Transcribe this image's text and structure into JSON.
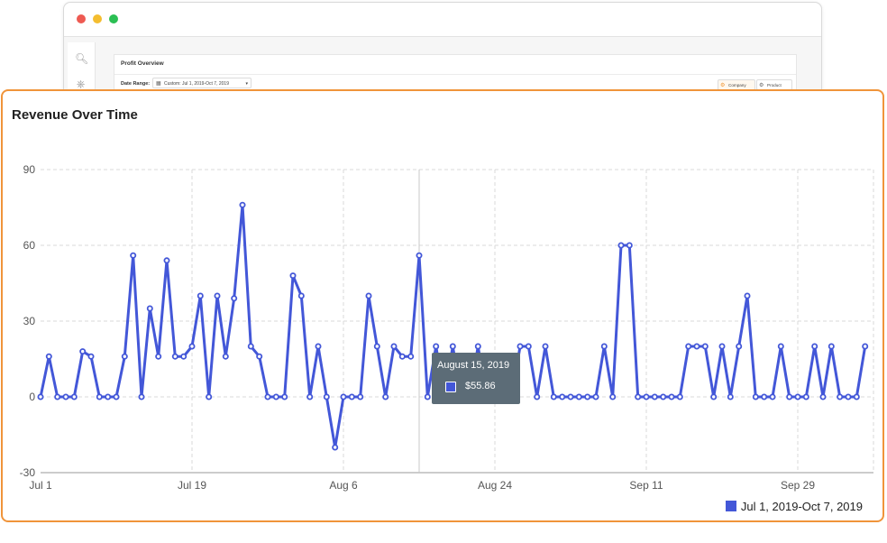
{
  "background_window": {
    "panel_title": "Profit Overview",
    "date_range_label": "Date Range:",
    "date_range_value": "Custom: Jul 1, 2019-Oct 7, 2019",
    "segments": [
      "Company",
      "Product"
    ],
    "sidebar_icons": [
      "search-icon",
      "tag-icon"
    ]
  },
  "card": {
    "title": "Revenue Over Time",
    "accent_color": "#f0943a"
  },
  "tooltip": {
    "date": "August 15, 2019",
    "value": "$55.86"
  },
  "legend": {
    "label": "Jul 1, 2019-Oct 7, 2019",
    "color": "#4357d8"
  },
  "chart_data": {
    "type": "line",
    "title": "Revenue Over Time",
    "xlabel": "",
    "ylabel": "",
    "ylim": [
      -30,
      90
    ],
    "yticks": [
      -30,
      0,
      30,
      60,
      90
    ],
    "xlim": [
      "2019-07-01",
      "2019-10-08"
    ],
    "xtick_labels": [
      {
        "date": "2019-07-01",
        "label": "Jul 1"
      },
      {
        "date": "2019-07-19",
        "label": "Jul 19"
      },
      {
        "date": "2019-08-06",
        "label": "Aug 6"
      },
      {
        "date": "2019-08-24",
        "label": "Aug 24"
      },
      {
        "date": "2019-09-11",
        "label": "Sep 11"
      },
      {
        "date": "2019-09-29",
        "label": "Sep 29"
      }
    ],
    "grid": true,
    "legend_position": "bottom-right",
    "series": [
      {
        "name": "Jul 1, 2019-Oct 7, 2019",
        "color": "#4357d8",
        "start_date": "2019-07-01",
        "values": [
          0,
          16,
          0,
          0,
          0,
          18,
          16,
          0,
          0,
          0,
          16,
          56,
          0,
          35,
          16,
          54,
          16,
          16,
          20,
          40,
          0,
          40,
          16,
          39,
          76,
          20,
          16,
          0,
          0,
          0,
          48,
          40,
          0,
          20,
          0,
          -20,
          0,
          0,
          0,
          40,
          20,
          0,
          20,
          16,
          16,
          56,
          0,
          20,
          0,
          20,
          0,
          0,
          20,
          0,
          0,
          0,
          0,
          20,
          20,
          0,
          20,
          0,
          0,
          0,
          0,
          0,
          0,
          20,
          0,
          60,
          60,
          0,
          0,
          0,
          0,
          0,
          0,
          20,
          20,
          20,
          0,
          20,
          0,
          20,
          40,
          0,
          0,
          0,
          20,
          0,
          0,
          0,
          20,
          0,
          20,
          0,
          0,
          0,
          20
        ]
      }
    ]
  }
}
